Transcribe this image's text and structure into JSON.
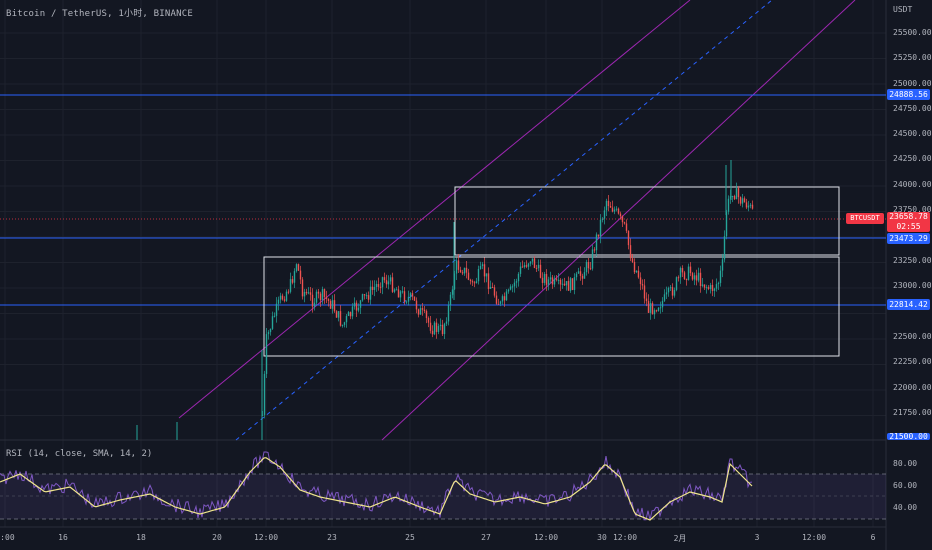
{
  "header": {
    "title": "Bitcoin / TetherUS, 1小时, BINANCE",
    "currency": "USDT"
  },
  "price_axis": {
    "labels": [
      "25500.00",
      "25250.00",
      "25000.00",
      "24750.00",
      "24500.00",
      "24250.00",
      "24000.00",
      "23750.00",
      "23500.00",
      "23250.00",
      "23000.00",
      "22750.00",
      "22500.00",
      "22250.00",
      "22000.00",
      "21750.00"
    ],
    "bottom_partial": "21500.00"
  },
  "horizontal_levels": [
    {
      "value": "24888.56",
      "color": "#2962ff"
    },
    {
      "value": "23473.29",
      "color": "#2962ff"
    },
    {
      "value": "22814.42",
      "color": "#2962ff"
    }
  ],
  "last_price": {
    "symbol": "BTCUSDT",
    "price": "23658.78",
    "countdown": "02:55",
    "color": "#f23645"
  },
  "candles": {
    "up_color": "#26a69a",
    "down_color": "#ef5350"
  },
  "time_axis": {
    "labels": [
      "2:00",
      "16",
      "18",
      "20",
      "12:00",
      "23",
      "25",
      "27",
      "12:00",
      "30",
      "12:00",
      "2月",
      "3",
      "12:00",
      "6"
    ]
  },
  "rsi": {
    "title": "RSI (14, close, SMA, 14, 2)",
    "levels": [
      "80.00",
      "60.00",
      "40.00"
    ],
    "rsi_color": "#7e57c2",
    "ma_color": "#f0e68c"
  },
  "drawings": {
    "channel_color": "#9c27b0",
    "midline_color": "#2962ff",
    "rectangle_color": "#e0e3eb"
  }
}
